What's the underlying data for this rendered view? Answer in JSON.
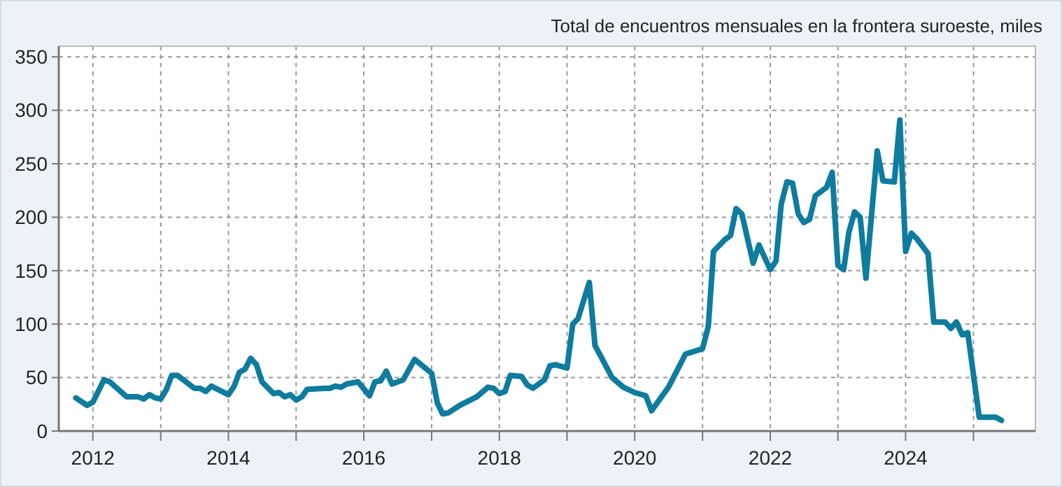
{
  "chart_data": {
    "type": "line",
    "title": "Total de encuentros mensuales en la frontera suroeste, miles",
    "x": [
      "2011-10",
      "2011-12",
      "2012-01",
      "2012-03",
      "2012-04",
      "2012-07",
      "2012-09",
      "2012-10",
      "2012-11",
      "2012-12",
      "2013-01",
      "2013-02",
      "2013-03",
      "2013-04",
      "2013-07",
      "2013-08",
      "2013-09",
      "2013-10",
      "2014-01",
      "2014-02",
      "2014-03",
      "2014-04",
      "2014-05",
      "2014-06",
      "2014-07",
      "2014-09",
      "2014-10",
      "2014-11",
      "2014-12",
      "2015-01",
      "2015-02",
      "2015-03",
      "2015-06",
      "2015-07",
      "2015-08",
      "2015-09",
      "2015-10",
      "2015-12",
      "2016-02",
      "2016-03",
      "2016-04",
      "2016-05",
      "2016-06",
      "2016-08",
      "2016-10",
      "2017-01",
      "2017-02",
      "2017-03",
      "2017-04",
      "2017-06",
      "2017-09",
      "2017-11",
      "2017-12",
      "2018-01",
      "2018-02",
      "2018-03",
      "2018-05",
      "2018-06",
      "2018-07",
      "2018-09",
      "2018-10",
      "2018-11",
      "2019-01",
      "2019-02",
      "2019-03",
      "2019-05",
      "2019-06",
      "2019-09",
      "2019-11",
      "2020-01",
      "2020-03",
      "2020-04",
      "2020-07",
      "2020-10",
      "2021-01",
      "2021-02",
      "2021-03",
      "2021-05",
      "2021-06",
      "2021-07",
      "2021-08",
      "2021-10",
      "2021-11",
      "2022-01",
      "2022-02",
      "2022-03",
      "2022-04",
      "2022-05",
      "2022-06",
      "2022-07",
      "2022-08",
      "2022-09",
      "2022-11",
      "2022-12",
      "2023-01",
      "2023-02",
      "2023-03",
      "2023-04",
      "2023-05",
      "2023-06",
      "2023-08",
      "2023-09",
      "2023-11",
      "2023-12",
      "2024-01",
      "2024-02",
      "2024-03",
      "2024-05",
      "2024-06",
      "2024-08",
      "2024-09",
      "2024-10",
      "2024-11",
      "2024-12",
      "2025-02",
      "2025-05",
      "2025-06"
    ],
    "series": [
      {
        "color": "#0e7c9e",
        "values": [
          31,
          24,
          27,
          48,
          46,
          32,
          32,
          30,
          34,
          31,
          30,
          39,
          52,
          52,
          40,
          40,
          37,
          42,
          34,
          42,
          55,
          58,
          68,
          62,
          46,
          35,
          36,
          32,
          34,
          29,
          32,
          39,
          40,
          40,
          42,
          41,
          44,
          46,
          33,
          46,
          47,
          56,
          44,
          48,
          67,
          54,
          26,
          16,
          17,
          24,
          32,
          41,
          40,
          35,
          37,
          52,
          51,
          43,
          40,
          48,
          61,
          62,
          59,
          100,
          105,
          139,
          80,
          50,
          41,
          36,
          33,
          19,
          41,
          72,
          77,
          98,
          168,
          179,
          183,
          208,
          203,
          157,
          174,
          151,
          159,
          212,
          233,
          232,
          203,
          195,
          198,
          220,
          228,
          242,
          155,
          151,
          186,
          205,
          200,
          143,
          262,
          234,
          233,
          291,
          168,
          185,
          180,
          166,
          102,
          102,
          96,
          102,
          90,
          92,
          13,
          13,
          10
        ]
      }
    ],
    "xlim": [
      "2011-07",
      "2025-12"
    ],
    "xticks": [
      {
        "value": "2012",
        "label": "2012"
      },
      {
        "value": "2013",
        "label": null
      },
      {
        "value": "2014",
        "label": "2014"
      },
      {
        "value": "2015",
        "label": null
      },
      {
        "value": "2016",
        "label": "2016"
      },
      {
        "value": "2017",
        "label": null
      },
      {
        "value": "2018",
        "label": "2018"
      },
      {
        "value": "2019",
        "label": null
      },
      {
        "value": "2020",
        "label": "2020"
      },
      {
        "value": "2021",
        "label": null
      },
      {
        "value": "2022",
        "label": "2022"
      },
      {
        "value": "2023",
        "label": null
      },
      {
        "value": "2024",
        "label": "2024"
      },
      {
        "value": "2025",
        "label": null
      }
    ],
    "ylim": [
      0,
      360
    ],
    "yticks": [
      0,
      50,
      100,
      150,
      200,
      250,
      300,
      350
    ],
    "grid": true,
    "line_style": "solid",
    "marker": "none"
  }
}
